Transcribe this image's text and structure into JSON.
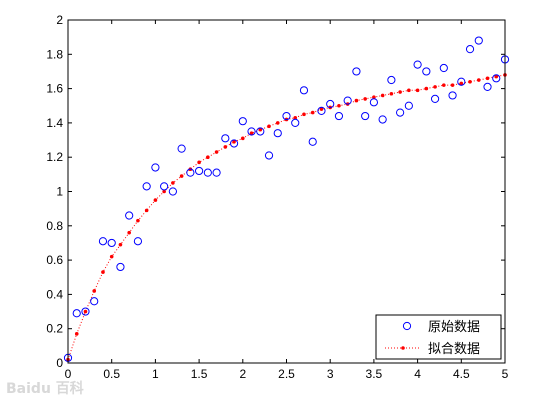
{
  "chart_data": {
    "type": "scatter",
    "xlim": [
      0,
      5
    ],
    "ylim": [
      0,
      2
    ],
    "xticks": [
      "0",
      "0.5",
      "1",
      "1.5",
      "2",
      "2.5",
      "3",
      "3.5",
      "4",
      "4.5",
      "5"
    ],
    "yticks": [
      "0",
      "0.2",
      "0.4",
      "0.6",
      "0.8",
      "1",
      "1.2",
      "1.4",
      "1.6",
      "1.8",
      "2"
    ],
    "grid": false,
    "legend_position": "bottom-right",
    "series": [
      {
        "name": "原始数据",
        "marker": "open-circle",
        "color": "#0000ff",
        "x": [
          0,
          0.1,
          0.2,
          0.3,
          0.4,
          0.5,
          0.6,
          0.7,
          0.8,
          0.9,
          1.0,
          1.1,
          1.2,
          1.3,
          1.4,
          1.5,
          1.6,
          1.7,
          1.8,
          1.9,
          2.0,
          2.1,
          2.2,
          2.3,
          2.4,
          2.5,
          2.6,
          2.7,
          2.8,
          2.9,
          3.0,
          3.1,
          3.2,
          3.3,
          3.4,
          3.5,
          3.6,
          3.7,
          3.8,
          3.9,
          4.0,
          4.1,
          4.2,
          4.3,
          4.4,
          4.5,
          4.6,
          4.7,
          4.8,
          4.9,
          5.0
        ],
        "y": [
          0.03,
          0.29,
          0.3,
          0.36,
          0.71,
          0.7,
          0.56,
          0.86,
          0.71,
          1.03,
          1.14,
          1.03,
          1.0,
          1.25,
          1.11,
          1.12,
          1.11,
          1.11,
          1.31,
          1.28,
          1.41,
          1.35,
          1.35,
          1.21,
          1.34,
          1.44,
          1.4,
          1.59,
          1.29,
          1.47,
          1.51,
          1.44,
          1.53,
          1.7,
          1.44,
          1.52,
          1.42,
          1.65,
          1.46,
          1.5,
          1.74,
          1.7,
          1.54,
          1.72,
          1.56,
          1.64,
          1.83,
          1.88,
          1.61,
          1.66,
          1.77
        ]
      },
      {
        "name": "拟合数据",
        "marker": "dot",
        "line": "dotted",
        "color": "#ff0000",
        "x": [
          0,
          0.1,
          0.2,
          0.3,
          0.4,
          0.5,
          0.6,
          0.7,
          0.8,
          0.9,
          1.0,
          1.1,
          1.2,
          1.3,
          1.4,
          1.5,
          1.6,
          1.7,
          1.8,
          1.9,
          2.0,
          2.1,
          2.2,
          2.3,
          2.4,
          2.5,
          2.6,
          2.7,
          2.8,
          2.9,
          3.0,
          3.1,
          3.2,
          3.3,
          3.4,
          3.5,
          3.6,
          3.7,
          3.8,
          3.9,
          4.0,
          4.1,
          4.2,
          4.3,
          4.4,
          4.5,
          4.6,
          4.7,
          4.8,
          4.9,
          5.0
        ],
        "y": [
          0.02,
          0.17,
          0.3,
          0.42,
          0.53,
          0.62,
          0.69,
          0.76,
          0.83,
          0.89,
          0.95,
          1.0,
          1.05,
          1.09,
          1.13,
          1.17,
          1.2,
          1.23,
          1.26,
          1.29,
          1.31,
          1.34,
          1.36,
          1.38,
          1.4,
          1.42,
          1.43,
          1.45,
          1.46,
          1.48,
          1.49,
          1.5,
          1.51,
          1.53,
          1.54,
          1.55,
          1.56,
          1.57,
          1.58,
          1.59,
          1.59,
          1.6,
          1.61,
          1.62,
          1.62,
          1.63,
          1.64,
          1.65,
          1.66,
          1.67,
          1.68
        ]
      }
    ]
  },
  "watermark": "Baidu 百科"
}
